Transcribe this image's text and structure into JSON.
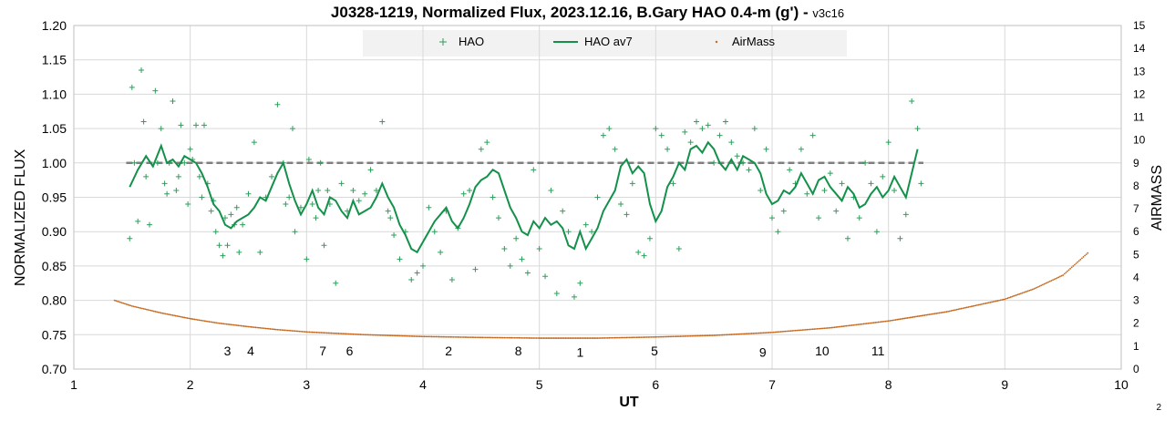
{
  "title": "J0328-1219, Normalized Flux, 2023.12.16, B.Gary HAO 0.4-m (g')",
  "title_suffix": " - ",
  "version": "v3c16",
  "corner_text": "2",
  "chart_data": {
    "type": "scatter",
    "xlabel": "UT",
    "ylabel": "NORMALIZED FLUX",
    "y2label": "AIRMASS",
    "xlim": [
      1,
      10
    ],
    "ylim": [
      0.7,
      1.2
    ],
    "y2lim": [
      0,
      15
    ],
    "xticks": [
      "1",
      "2",
      "3",
      "4",
      "5",
      "6",
      "7",
      "8",
      "9",
      "10"
    ],
    "yticks": [
      "0.70",
      "0.75",
      "0.80",
      "0.85",
      "0.90",
      "0.95",
      "1.00",
      "1.05",
      "1.10",
      "1.15",
      "1.20"
    ],
    "y2ticks": [
      "0",
      "1",
      "2",
      "3",
      "4",
      "5",
      "6",
      "7",
      "8",
      "9",
      "10",
      "11",
      "12",
      "13",
      "14",
      "15"
    ],
    "grid": true,
    "legend_position": "top-center",
    "colors": {
      "hao": "#2e9e5a",
      "hao_av7": "#13914a",
      "airmass": "#c6691f",
      "reference": "#7f7f7f"
    },
    "legend": [
      {
        "label": "HAO",
        "marker": "plus"
      },
      {
        "label": "HAO av7",
        "marker": "line"
      },
      {
        "label": "AirMass",
        "marker": "dot"
      }
    ],
    "reference_line": {
      "y": 1.0,
      "x": [
        1.45,
        8.3
      ]
    },
    "airmass": {
      "x": [
        1.35,
        1.5,
        1.75,
        2.0,
        2.25,
        2.5,
        2.75,
        3.0,
        3.5,
        4.0,
        4.5,
        5.0,
        5.5,
        6.0,
        6.5,
        7.0,
        7.5,
        8.0,
        8.5,
        9.0,
        9.25,
        9.5,
        9.72
      ],
      "y": [
        3.0,
        2.75,
        2.45,
        2.2,
        2.0,
        1.85,
        1.72,
        1.62,
        1.5,
        1.42,
        1.38,
        1.35,
        1.35,
        1.4,
        1.47,
        1.6,
        1.8,
        2.1,
        2.5,
        3.05,
        3.5,
        4.1,
        5.1
      ]
    },
    "hao_av7": {
      "x": [
        1.48,
        1.55,
        1.62,
        1.68,
        1.75,
        1.8,
        1.85,
        1.9,
        1.95,
        2.0,
        2.05,
        2.1,
        2.15,
        2.2,
        2.25,
        2.3,
        2.35,
        2.4,
        2.45,
        2.5,
        2.55,
        2.6,
        2.65,
        2.7,
        2.75,
        2.8,
        2.85,
        2.9,
        2.95,
        3.0,
        3.05,
        3.1,
        3.15,
        3.2,
        3.25,
        3.3,
        3.35,
        3.4,
        3.45,
        3.5,
        3.55,
        3.6,
        3.65,
        3.7,
        3.75,
        3.8,
        3.85,
        3.9,
        3.95,
        4.0,
        4.05,
        4.1,
        4.15,
        4.2,
        4.25,
        4.3,
        4.35,
        4.4,
        4.45,
        4.5,
        4.55,
        4.6,
        4.65,
        4.7,
        4.75,
        4.8,
        4.85,
        4.9,
        4.95,
        5.0,
        5.05,
        5.1,
        5.15,
        5.2,
        5.25,
        5.3,
        5.35,
        5.4,
        5.45,
        5.5,
        5.55,
        5.6,
        5.65,
        5.7,
        5.75,
        5.8,
        5.85,
        5.9,
        5.95,
        6.0,
        6.05,
        6.1,
        6.15,
        6.2,
        6.25,
        6.3,
        6.35,
        6.4,
        6.45,
        6.5,
        6.55,
        6.6,
        6.65,
        6.7,
        6.75,
        6.8,
        6.85,
        6.9,
        6.95,
        7.0,
        7.05,
        7.1,
        7.15,
        7.2,
        7.25,
        7.3,
        7.35,
        7.4,
        7.45,
        7.5,
        7.55,
        7.6,
        7.65,
        7.7,
        7.75,
        7.8,
        7.85,
        7.9,
        7.95,
        8.0,
        8.05,
        8.1,
        8.15,
        8.2,
        8.25
      ],
      "y": [
        0.965,
        0.99,
        1.01,
        0.995,
        1.025,
        1.0,
        1.005,
        0.995,
        1.01,
        1.005,
        1.0,
        0.985,
        0.965,
        0.94,
        0.93,
        0.91,
        0.905,
        0.915,
        0.92,
        0.925,
        0.935,
        0.95,
        0.945,
        0.965,
        0.985,
        1.0,
        0.97,
        0.945,
        0.925,
        0.94,
        0.96,
        0.935,
        0.925,
        0.95,
        0.945,
        0.93,
        0.92,
        0.945,
        0.925,
        0.93,
        0.935,
        0.95,
        0.97,
        0.95,
        0.935,
        0.91,
        0.895,
        0.875,
        0.87,
        0.885,
        0.9,
        0.915,
        0.925,
        0.935,
        0.915,
        0.905,
        0.92,
        0.94,
        0.965,
        0.975,
        0.98,
        0.99,
        0.985,
        0.96,
        0.935,
        0.92,
        0.9,
        0.895,
        0.915,
        0.905,
        0.92,
        0.91,
        0.915,
        0.905,
        0.88,
        0.875,
        0.9,
        0.875,
        0.89,
        0.905,
        0.93,
        0.945,
        0.96,
        0.995,
        1.005,
        0.985,
        0.995,
        0.985,
        0.94,
        0.915,
        0.93,
        0.965,
        0.98,
        1.0,
        0.99,
        1.02,
        1.025,
        1.015,
        1.03,
        1.02,
        1.0,
        0.99,
        1.005,
        0.99,
        1.01,
        1.005,
        1.0,
        0.985,
        0.955,
        0.94,
        0.945,
        0.96,
        0.955,
        0.965,
        0.985,
        0.97,
        0.955,
        0.975,
        0.98,
        0.965,
        0.955,
        0.945,
        0.965,
        0.955,
        0.935,
        0.94,
        0.955,
        0.965,
        0.95,
        0.96,
        0.98,
        0.965,
        0.95,
        0.985,
        1.02
      ]
    },
    "hao_points": {
      "x": [
        1.48,
        1.5,
        1.52,
        1.55,
        1.58,
        1.6,
        1.62,
        1.65,
        1.7,
        1.72,
        1.75,
        1.78,
        1.8,
        1.82,
        1.85,
        1.88,
        1.9,
        1.92,
        1.95,
        1.98,
        2.0,
        2.02,
        2.05,
        2.08,
        2.1,
        2.12,
        2.15,
        2.18,
        2.2,
        2.22,
        2.25,
        2.28,
        2.3,
        2.32,
        2.35,
        2.38,
        2.4,
        2.42,
        2.45,
        2.5,
        2.55,
        2.6,
        2.65,
        2.7,
        2.75,
        2.8,
        2.82,
        2.85,
        2.88,
        2.9,
        2.95,
        3.0,
        3.02,
        3.05,
        3.08,
        3.1,
        3.12,
        3.15,
        3.18,
        3.2,
        3.25,
        3.3,
        3.35,
        3.4,
        3.45,
        3.5,
        3.55,
        3.6,
        3.65,
        3.7,
        3.72,
        3.75,
        3.8,
        3.85,
        3.9,
        3.95,
        4.0,
        4.05,
        4.1,
        4.15,
        4.2,
        4.25,
        4.3,
        4.35,
        4.4,
        4.45,
        4.5,
        4.55,
        4.6,
        4.65,
        4.7,
        4.75,
        4.8,
        4.85,
        4.9,
        4.95,
        5.0,
        5.05,
        5.1,
        5.15,
        5.2,
        5.25,
        5.3,
        5.35,
        5.4,
        5.45,
        5.5,
        5.55,
        5.6,
        5.65,
        5.7,
        5.75,
        5.8,
        5.85,
        5.9,
        5.95,
        6.0,
        6.05,
        6.1,
        6.15,
        6.2,
        6.25,
        6.3,
        6.35,
        6.4,
        6.45,
        6.5,
        6.55,
        6.6,
        6.65,
        6.7,
        6.75,
        6.8,
        6.85,
        6.9,
        6.95,
        7.0,
        7.05,
        7.1,
        7.15,
        7.2,
        7.25,
        7.3,
        7.35,
        7.4,
        7.45,
        7.5,
        7.55,
        7.6,
        7.65,
        7.7,
        7.75,
        7.8,
        7.85,
        7.9,
        7.95,
        8.0,
        8.05,
        8.1,
        8.15,
        8.2,
        8.25,
        8.28
      ],
      "y": [
        0.89,
        1.11,
        1.0,
        0.915,
        1.135,
        1.06,
        0.98,
        0.91,
        1.105,
        1.0,
        1.05,
        0.97,
        0.955,
        1.0,
        1.09,
        0.96,
        0.98,
        1.055,
        1.0,
        0.94,
        1.02,
        1.005,
        1.055,
        0.98,
        0.95,
        1.055,
        0.97,
        0.93,
        0.945,
        0.9,
        0.88,
        0.865,
        0.92,
        0.88,
        0.925,
        0.91,
        0.935,
        0.87,
        0.91,
        0.955,
        1.03,
        0.87,
        0.95,
        0.98,
        1.085,
        1.0,
        0.94,
        0.95,
        1.05,
        0.9,
        0.935,
        0.86,
        1.005,
        0.94,
        0.92,
        0.96,
        1.0,
        0.88,
        0.96,
        0.94,
        0.825,
        0.97,
        0.93,
        0.96,
        0.945,
        0.955,
        0.99,
        0.96,
        1.06,
        0.93,
        0.92,
        0.895,
        0.86,
        0.9,
        0.83,
        0.84,
        0.85,
        0.935,
        0.9,
        0.87,
        0.93,
        0.83,
        0.905,
        0.955,
        0.96,
        0.845,
        1.02,
        1.03,
        0.95,
        0.92,
        0.875,
        0.85,
        0.89,
        0.86,
        0.84,
        0.99,
        0.875,
        0.835,
        0.96,
        0.81,
        0.93,
        0.9,
        0.805,
        0.825,
        0.91,
        0.9,
        0.95,
        1.04,
        1.05,
        1.02,
        0.94,
        0.925,
        0.97,
        0.87,
        0.865,
        0.89,
        1.05,
        1.04,
        1.02,
        0.97,
        0.875,
        1.045,
        1.03,
        1.06,
        1.05,
        1.055,
        1.0,
        1.04,
        1.06,
        1.03,
        1.01,
        1.0,
        0.99,
        1.05,
        0.96,
        1.02,
        0.92,
        0.9,
        0.93,
        0.99,
        0.97,
        1.02,
        0.955,
        1.04,
        0.92,
        0.96,
        0.985,
        0.93,
        0.97,
        0.89,
        0.95,
        0.92,
        1.0,
        0.97,
        0.9,
        0.98,
        1.03,
        0.96,
        0.89,
        0.925,
        1.09,
        1.05,
        0.97
      ]
    },
    "annotations": [
      {
        "text": "3",
        "x": 2.32,
        "y": 0.72
      },
      {
        "text": "4",
        "x": 2.52,
        "y": 0.72
      },
      {
        "text": "7",
        "x": 3.14,
        "y": 0.72
      },
      {
        "text": "6",
        "x": 3.37,
        "y": 0.72
      },
      {
        "text": "2",
        "x": 4.22,
        "y": 0.72
      },
      {
        "text": "8",
        "x": 4.82,
        "y": 0.72
      },
      {
        "text": "1",
        "x": 5.35,
        "y": 0.718
      },
      {
        "text": "5",
        "x": 5.99,
        "y": 0.72
      },
      {
        "text": "9",
        "x": 6.92,
        "y": 0.718
      },
      {
        "text": "10",
        "x": 7.43,
        "y": 0.72
      },
      {
        "text": "11",
        "x": 7.91,
        "y": 0.72
      }
    ]
  }
}
